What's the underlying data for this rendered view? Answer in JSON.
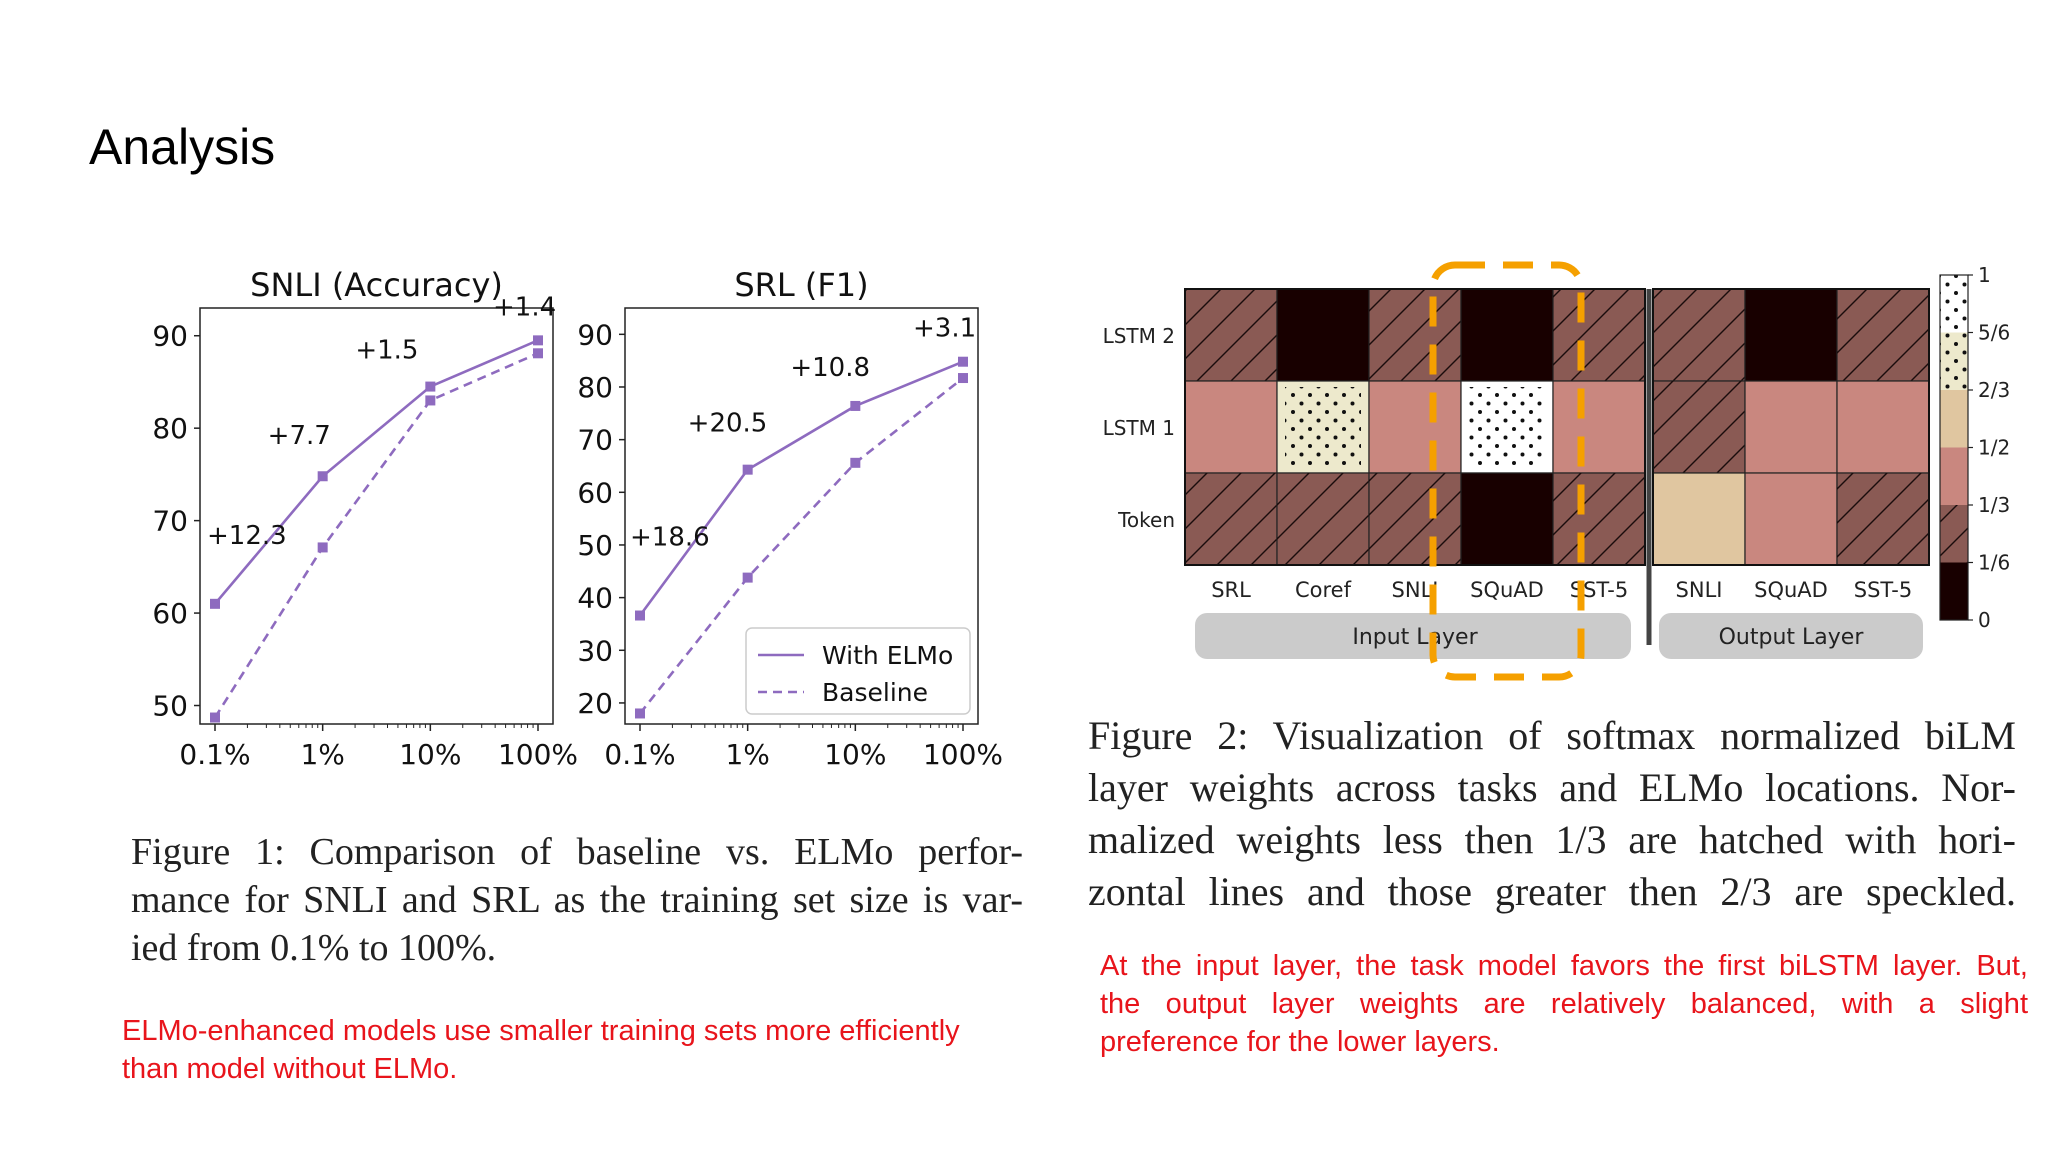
{
  "slide": {
    "title": "Analysis"
  },
  "chart_data": [
    {
      "type": "line",
      "title": "SNLI (Accuracy)",
      "x": [
        "0.1%",
        "1%",
        "10%",
        "100%"
      ],
      "x_scale": "log",
      "ylim": [
        48,
        93
      ],
      "yticks": [
        50,
        60,
        70,
        80,
        90
      ],
      "series": [
        {
          "name": "With ELMo",
          "values": [
            61.0,
            74.8,
            84.5,
            89.5
          ],
          "style": "solid"
        },
        {
          "name": "Baseline",
          "values": [
            48.7,
            67.1,
            83.0,
            88.1
          ],
          "style": "dashed"
        }
      ],
      "annotations": [
        "+12.3",
        "+7.7",
        "+1.5",
        "+1.4"
      ],
      "color": "#8e6bbf"
    },
    {
      "type": "line",
      "title": "SRL (F1)",
      "x": [
        "0.1%",
        "1%",
        "10%",
        "100%"
      ],
      "x_scale": "log",
      "ylim": [
        16,
        95
      ],
      "yticks": [
        20,
        30,
        40,
        50,
        60,
        70,
        80,
        90
      ],
      "series": [
        {
          "name": "With ELMo",
          "values": [
            36.6,
            64.3,
            76.4,
            84.8
          ],
          "style": "solid"
        },
        {
          "name": "Baseline",
          "values": [
            18.0,
            43.8,
            65.6,
            81.7
          ],
          "style": "dashed"
        }
      ],
      "annotations": [
        "+18.6",
        "+20.5",
        "+10.8",
        "+3.1"
      ],
      "legend": [
        "With ELMo",
        "Baseline"
      ],
      "legend_position": "bottom-right",
      "color": "#8e6bbf"
    },
    {
      "type": "heatmap",
      "rows": [
        "LSTM 2",
        "LSTM 1",
        "Token"
      ],
      "columns": [
        "SRL",
        "Coref",
        "SNLI",
        "SQuAD",
        "SST-5",
        "SNLI",
        "SQuAD",
        "SST-5"
      ],
      "groups": [
        "Input Layer",
        "Output Layer"
      ],
      "values": [
        [
          0.25,
          0.0,
          0.25,
          0.0,
          0.25,
          0.25,
          0.0,
          0.25
        ],
        [
          0.45,
          0.75,
          0.45,
          0.95,
          0.45,
          0.25,
          0.45,
          0.45
        ],
        [
          0.25,
          0.25,
          0.25,
          0.0,
          0.25,
          0.6,
          0.45,
          0.25
        ]
      ],
      "colorbar_ticks": [
        "1",
        "5/6",
        "2/3",
        "1/2",
        "1/3",
        "1/6",
        "0"
      ]
    }
  ],
  "figure1": {
    "caption": "Figure 1: Comparison of baseline vs. ELMo performance for SNLI and SRL as the training set size is varied from 0.1% to 100%.",
    "line1": "Figure 1:  Comparison of baseline vs.  ELMo perfor-",
    "line2": "mance for SNLI and SRL as the training set size is var-",
    "line3": "ied from 0.1% to 100%."
  },
  "figure2": {
    "line1": "Figure 2:  Visualization of softmax normalized biLM",
    "line2": "layer weights across tasks and ELMo locations.  Nor-",
    "line3": "malized weights less then 1/3 are hatched with hori-",
    "line4": "zontal lines and those greater then 2/3 are speckled."
  },
  "notes": {
    "left_line1": "ELMo-enhanced models use smaller training sets more efficiently",
    "left_line2": "than model without ELMo.",
    "right_line1": "At the input layer, the task model favors the first biLSTM layer. But,",
    "right_line2": "the output layer weights are relatively balanced, with a slight",
    "right_line3": "preference for the lower layers."
  },
  "colors": {
    "accent_purple": "#8e6bbf",
    "note_red": "#e8141b",
    "highlight_orange": "#f5a000"
  }
}
